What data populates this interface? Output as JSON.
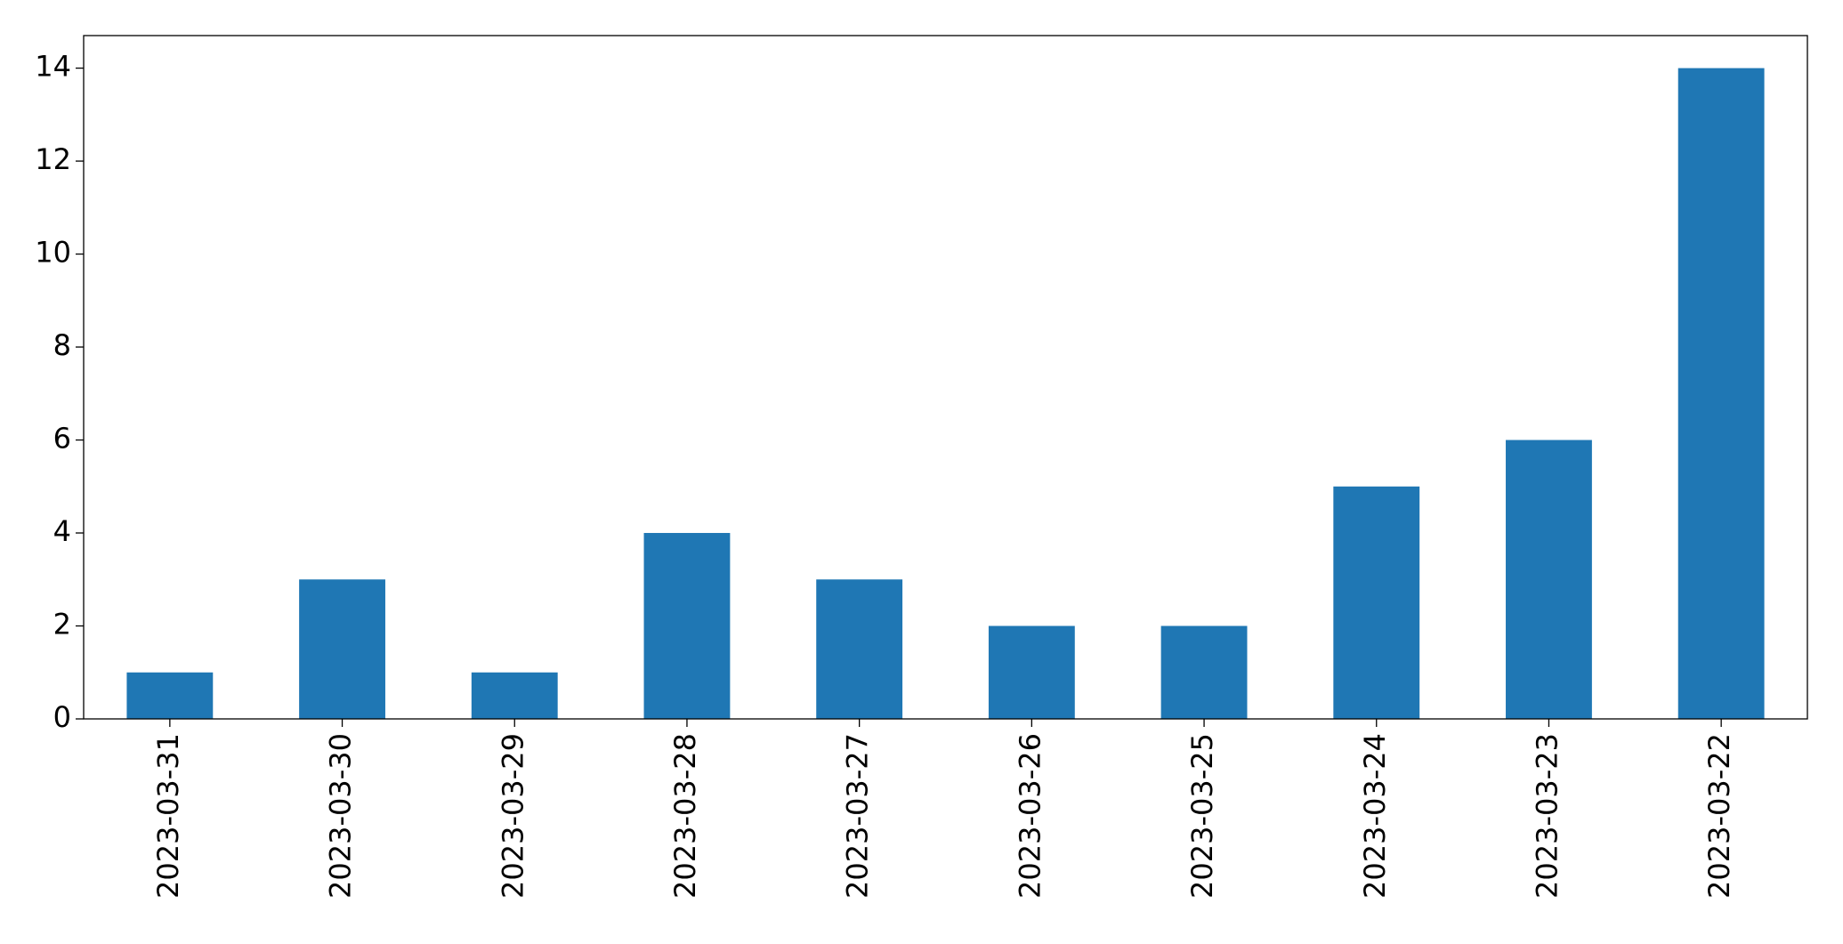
{
  "chart_data": {
    "type": "bar",
    "categories": [
      "2023-03-31",
      "2023-03-30",
      "2023-03-29",
      "2023-03-28",
      "2023-03-27",
      "2023-03-26",
      "2023-03-25",
      "2023-03-24",
      "2023-03-23",
      "2023-03-22"
    ],
    "values": [
      1,
      3,
      1,
      4,
      3,
      2,
      2,
      5,
      6,
      14
    ],
    "color": "#1f77b4",
    "ylim": [
      0,
      14.7
    ],
    "yticks": [
      0,
      2,
      4,
      6,
      8,
      10,
      12,
      14
    ],
    "grid": false
  }
}
